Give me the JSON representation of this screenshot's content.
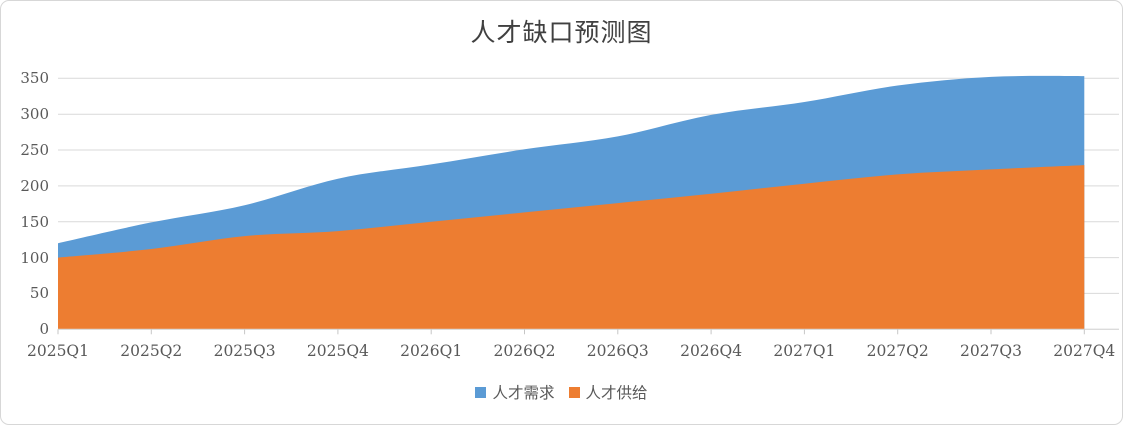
{
  "title": "人才缺口预测图",
  "chart_data": {
    "type": "area",
    "smoothed": true,
    "categories": [
      "2025Q1",
      "2025Q2",
      "2025Q3",
      "2025Q4",
      "2026Q1",
      "2026Q2",
      "2026Q3",
      "2026Q4",
      "2027Q1",
      "2027Q2",
      "2027Q3",
      "2027Q4"
    ],
    "series": [
      {
        "name": "人才需求",
        "color": "#5B9BD5",
        "values": [
          120,
          149,
          173,
          210,
          230,
          251,
          269,
          299,
          317,
          340,
          352,
          353
        ]
      },
      {
        "name": "人才供给",
        "color": "#ED7D31",
        "values": [
          100,
          112,
          130,
          137,
          150,
          163,
          176,
          189,
          203,
          216,
          223,
          229
        ]
      }
    ],
    "ylim": [
      0,
      350
    ],
    "ytick_interval": 50,
    "ytick_labels": [
      "0",
      "50",
      "100",
      "150",
      "200",
      "250",
      "300",
      "350"
    ],
    "grid": true,
    "legend_position": "bottom"
  },
  "colors": {
    "series_demand": "#5B9BD5",
    "series_supply": "#ED7D31",
    "gridline": "#D9D9D9",
    "axis_line": "#D9D9D9",
    "tick_mark": "#C6C6C6",
    "axis_text": "#595959",
    "title_text": "#404040"
  }
}
